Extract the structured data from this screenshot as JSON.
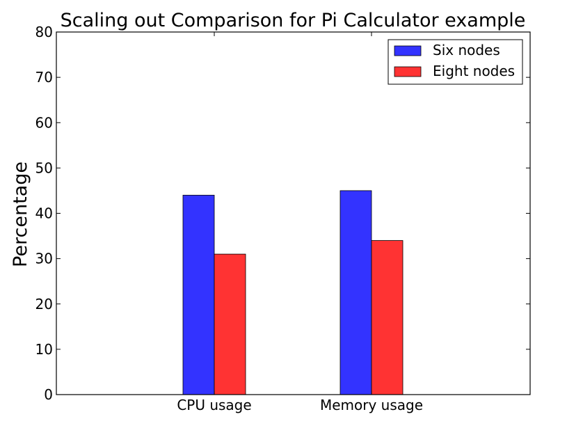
{
  "chart_data": {
    "type": "bar",
    "title": "Scaling out Comparison for Pi Calculator example",
    "xlabel": "",
    "ylabel": "Percentage",
    "categories": [
      "CPU usage",
      "Memory usage"
    ],
    "series": [
      {
        "name": "Six nodes",
        "values": [
          44,
          45
        ],
        "color": "#3333ff"
      },
      {
        "name": "Eight nodes",
        "values": [
          31,
          34
        ],
        "color": "#ff3333"
      }
    ],
    "ylim": [
      0,
      80
    ],
    "yticks": [
      0,
      10,
      20,
      30,
      40,
      50,
      60,
      70,
      80
    ],
    "grid": false,
    "legend_position": "top-right"
  }
}
